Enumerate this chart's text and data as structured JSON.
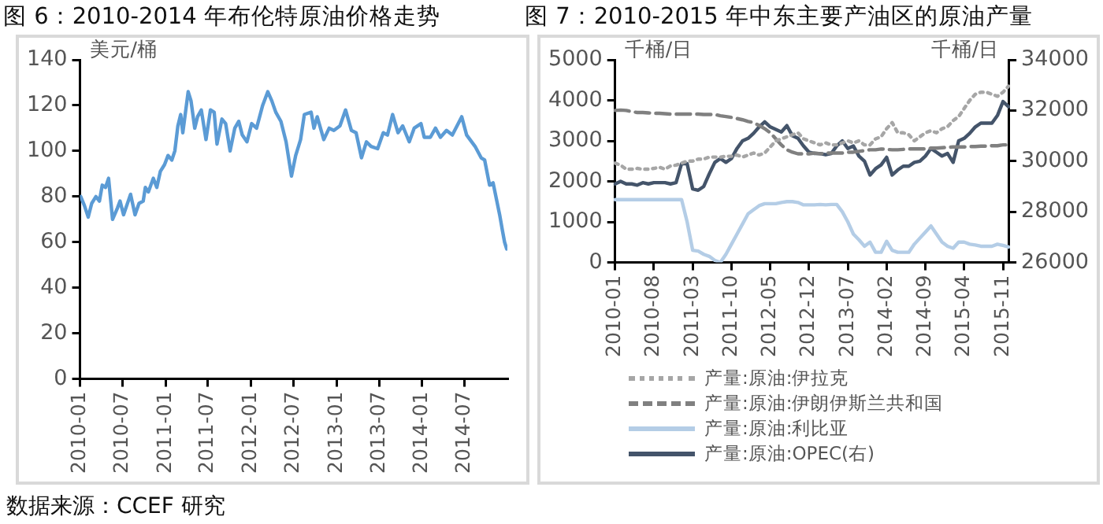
{
  "chart_data": [
    {
      "type": "line",
      "title": "图 6：2010-2014 年布伦特原油价格走势",
      "ylabel": "美元/桶",
      "annotations": [
        "数据来源：CCEF 研究"
      ],
      "x": [
        "2010-01-04",
        "2010-01-20",
        "2010-02-05",
        "2010-02-20",
        "2010-03-10",
        "2010-03-25",
        "2010-04-06",
        "2010-04-20",
        "2010-05-03",
        "2010-05-20",
        "2010-06-10",
        "2010-06-21",
        "2010-07-06",
        "2010-07-26",
        "2010-08-05",
        "2010-08-24",
        "2010-09-10",
        "2010-09-28",
        "2010-10-07",
        "2010-10-20",
        "2010-11-10",
        "2010-11-25",
        "2010-12-10",
        "2010-12-28",
        "2011-01-12",
        "2011-01-28",
        "2011-02-10",
        "2011-02-23",
        "2011-03-07",
        "2011-03-16",
        "2011-04-08",
        "2011-04-20",
        "2011-05-06",
        "2011-05-18",
        "2011-06-03",
        "2011-06-23",
        "2011-07-12",
        "2011-07-28",
        "2011-08-09",
        "2011-08-30",
        "2011-09-15",
        "2011-10-04",
        "2011-10-24",
        "2011-11-10",
        "2011-11-25",
        "2011-12-15",
        "2012-01-04",
        "2012-01-25",
        "2012-02-20",
        "2012-03-13",
        "2012-03-30",
        "2012-04-16",
        "2012-05-08",
        "2012-05-30",
        "2012-06-22",
        "2012-07-10",
        "2012-07-31",
        "2012-08-16",
        "2012-09-14",
        "2012-09-26",
        "2012-10-10",
        "2012-11-07",
        "2012-11-30",
        "2012-12-20",
        "2013-01-15",
        "2013-02-08",
        "2013-03-05",
        "2013-03-25",
        "2013-04-17",
        "2013-05-08",
        "2013-05-28",
        "2013-06-25",
        "2013-07-19",
        "2013-08-06",
        "2013-08-28",
        "2013-09-20",
        "2013-10-10",
        "2013-11-07",
        "2013-11-28",
        "2013-12-27",
        "2014-01-10",
        "2014-02-05",
        "2014-02-27",
        "2014-03-20",
        "2014-04-15",
        "2014-05-10",
        "2014-06-19",
        "2014-07-10",
        "2014-08-15",
        "2014-09-10",
        "2014-09-25",
        "2014-10-16",
        "2014-10-31",
        "2014-11-14",
        "2014-11-28",
        "2014-12-10",
        "2014-12-19",
        "2014-12-28"
      ],
      "series": [
        {
          "color": "#5b9bd5",
          "values": [
            80,
            76,
            71,
            77,
            80,
            78,
            85,
            84,
            88,
            70,
            75,
            78,
            72,
            78,
            81,
            72,
            77,
            78,
            84,
            82,
            88,
            84,
            91,
            94,
            98,
            96,
            100,
            111,
            116,
            108,
            126,
            122,
            110,
            115,
            118,
            105,
            118,
            117,
            103,
            114,
            112,
            100,
            110,
            113,
            107,
            104,
            112,
            110,
            120,
            126,
            122,
            117,
            113,
            104,
            89,
            98,
            105,
            116,
            117,
            110,
            115,
            105,
            110,
            109,
            111,
            118,
            109,
            108,
            97,
            104,
            102,
            101,
            108,
            107,
            116,
            108,
            111,
            104,
            110,
            112,
            106,
            106,
            110,
            106,
            109,
            107,
            115,
            107,
            102,
            97,
            96,
            85,
            86,
            79,
            72,
            65,
            60,
            57
          ]
        }
      ],
      "xlim": [
        "2010-01-01",
        "2014-12-31"
      ],
      "xticks": [
        "2010-01",
        "2010-07",
        "2011-01",
        "2011-07",
        "2012-01",
        "2012-07",
        "2013-01",
        "2013-07",
        "2014-01",
        "2014-07"
      ],
      "ylim": [
        0,
        140
      ],
      "yticks": [
        0,
        20,
        40,
        60,
        80,
        100,
        120,
        140
      ]
    },
    {
      "type": "line",
      "title": "图 7：2010-2015 年中东主要产油区的原油产量",
      "ylabel": "千桶/日",
      "y2label": "千桶/日",
      "legend": "bottom",
      "categories": [
        "2010-01",
        null,
        null,
        null,
        null,
        null,
        null,
        "2010-08",
        null,
        null,
        null,
        null,
        null,
        null,
        "2011-03",
        null,
        null,
        null,
        null,
        null,
        null,
        "2011-10",
        null,
        null,
        null,
        null,
        null,
        null,
        "2012-05",
        null,
        null,
        null,
        null,
        null,
        null,
        "2012-12",
        null,
        null,
        null,
        null,
        null,
        null,
        "2013-07",
        null,
        null,
        null,
        null,
        null,
        null,
        "2014-02",
        null,
        null,
        null,
        null,
        null,
        null,
        "2014-09",
        null,
        null,
        null,
        null,
        null,
        null,
        "2015-04",
        null,
        null,
        null,
        null,
        null,
        null,
        "2015-11",
        null
      ],
      "series": [
        {
          "name": "产量:原油:伊拉克",
          "color": "#a6a6a6",
          "line_style": "dotted",
          "values": [
            2450,
            2400,
            2300,
            2300,
            2320,
            2300,
            2300,
            2320,
            2350,
            2300,
            2380,
            2400,
            2450,
            2500,
            2500,
            2550,
            2550,
            2600,
            2600,
            2600,
            2620,
            2620,
            2650,
            2600,
            2650,
            2700,
            2650,
            2700,
            2850,
            3000,
            3050,
            3100,
            3150,
            3200,
            3050,
            3000,
            2950,
            2900,
            2950,
            2900,
            2900,
            2950,
            3000,
            2950,
            3000,
            2900,
            2900,
            3050,
            3100,
            3300,
            3450,
            3200,
            3200,
            3150,
            3000,
            3100,
            3200,
            3250,
            3200,
            3300,
            3350,
            3500,
            3600,
            3800,
            4000,
            4150,
            4200,
            4200,
            4150,
            4100,
            4200,
            4350
          ]
        },
        {
          "name": "产量:原油:伊朗伊斯兰共和国",
          "color": "#808080",
          "line_style": "dashed",
          "values": [
            3750,
            3760,
            3750,
            3720,
            3700,
            3700,
            3690,
            3680,
            3680,
            3670,
            3660,
            3660,
            3660,
            3660,
            3660,
            3660,
            3650,
            3650,
            3650,
            3620,
            3600,
            3580,
            3550,
            3520,
            3480,
            3450,
            3380,
            3300,
            3200,
            3050,
            2900,
            2780,
            2720,
            2680,
            2680,
            2680,
            2700,
            2680,
            2700,
            2700,
            2700,
            2700,
            2720,
            2720,
            2740,
            2760,
            2780,
            2780,
            2800,
            2790,
            2780,
            2780,
            2790,
            2800,
            2800,
            2800,
            2800,
            2820,
            2820,
            2830,
            2840,
            2850,
            2850,
            2850,
            2860,
            2860,
            2870,
            2870,
            2880,
            2880,
            2900,
            2900
          ]
        },
        {
          "name": "产量:原油:利比亚",
          "color": "#b4cde6",
          "line_style": "solid",
          "values": [
            1550,
            1550,
            1550,
            1550,
            1550,
            1550,
            1550,
            1550,
            1550,
            1550,
            1550,
            1550,
            1550,
            1000,
            300,
            280,
            200,
            150,
            50,
            0,
            200,
            450,
            700,
            950,
            1200,
            1300,
            1400,
            1450,
            1450,
            1450,
            1480,
            1500,
            1500,
            1480,
            1420,
            1420,
            1420,
            1430,
            1420,
            1430,
            1430,
            1250,
            1000,
            700,
            560,
            400,
            500,
            250,
            250,
            520,
            300,
            250,
            250,
            250,
            450,
            600,
            750,
            900,
            700,
            500,
            400,
            350,
            500,
            500,
            450,
            430,
            400,
            400,
            400,
            450,
            420,
            380
          ]
        },
        {
          "name": "产量:原油:OPEC(右)",
          "color": "#44546a",
          "line_style": "solid",
          "axis": "y2",
          "values": [
            29100,
            29200,
            29100,
            29100,
            29050,
            29150,
            29100,
            29150,
            29150,
            29150,
            29100,
            29150,
            29900,
            29900,
            28900,
            28850,
            29000,
            29500,
            29950,
            30100,
            29950,
            30100,
            30500,
            30800,
            30900,
            31100,
            31350,
            31550,
            31350,
            31250,
            31150,
            31400,
            31000,
            30900,
            30600,
            30350,
            30300,
            30300,
            30250,
            30300,
            30600,
            30800,
            30500,
            30600,
            30200,
            30000,
            29450,
            29700,
            29850,
            30150,
            29450,
            29650,
            29800,
            29800,
            29950,
            30000,
            30200,
            30500,
            30350,
            30200,
            30300,
            29950,
            30800,
            30900,
            31100,
            31350,
            31500,
            31500,
            31500,
            31800,
            32350,
            32150
          ]
        }
      ],
      "ylim": [
        0,
        5000
      ],
      "yticks": [
        0,
        1000,
        2000,
        3000,
        4000,
        5000
      ],
      "y2lim": [
        26000,
        34000
      ],
      "y2ticks": [
        26000,
        28000,
        30000,
        32000,
        34000
      ]
    }
  ]
}
